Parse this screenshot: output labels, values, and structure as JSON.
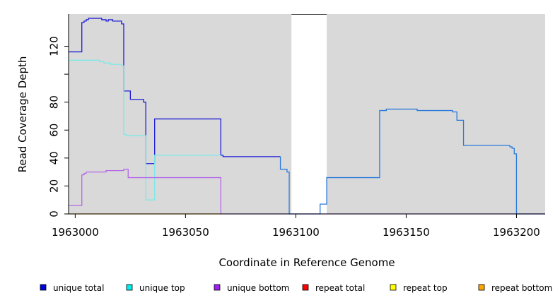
{
  "chart_data": {
    "type": "line",
    "title": "",
    "xlabel": "Coordinate in Reference Genome",
    "ylabel": "Read Coverage Depth",
    "xlim": [
      1962997,
      1963213
    ],
    "ylim": [
      0,
      143
    ],
    "x_ticks": [
      1963000,
      1963050,
      1963100,
      1963150,
      1963200
    ],
    "x_tick_labels": [
      "1963000",
      "1963050",
      "1963100",
      "1963150",
      "1963200"
    ],
    "y_ticks": [
      0,
      20,
      40,
      60,
      80,
      100,
      120
    ],
    "y_tick_labels": [
      "0",
      "20",
      "40",
      "60",
      "80",
      "",
      "120"
    ],
    "grid": false,
    "background": "#d9d9d9",
    "background_gaps": [
      [
        1963098,
        1963114
      ]
    ],
    "legend_position": "bottom",
    "legend": [
      {
        "name": "unique total",
        "color": "#0000dd"
      },
      {
        "name": "unique top",
        "color": "#00eeee"
      },
      {
        "name": "unique bottom",
        "color": "#a020f0"
      },
      {
        "name": "repeat total",
        "color": "#ff0000"
      },
      {
        "name": "repeat top",
        "color": "#ffff00"
      },
      {
        "name": "repeat bottom",
        "color": "#ffa500"
      }
    ],
    "series": [
      {
        "name": "unique total",
        "color": "#1c1cd6",
        "points": [
          [
            1962997,
            116
          ],
          [
            1963003,
            116
          ],
          [
            1963003,
            137
          ],
          [
            1963004,
            137
          ],
          [
            1963004,
            138
          ],
          [
            1963005,
            138
          ],
          [
            1963005,
            139
          ],
          [
            1963006,
            139
          ],
          [
            1963006,
            140
          ],
          [
            1963012,
            140
          ],
          [
            1963012,
            139
          ],
          [
            1963014,
            139
          ],
          [
            1963014,
            138
          ],
          [
            1963015,
            138
          ],
          [
            1963015,
            139
          ],
          [
            1963017,
            139
          ],
          [
            1963017,
            138
          ],
          [
            1963021,
            138
          ],
          [
            1963021,
            136
          ],
          [
            1963022,
            136
          ],
          [
            1963022,
            88
          ],
          [
            1963025,
            88
          ],
          [
            1963025,
            82
          ],
          [
            1963031,
            82
          ],
          [
            1963031,
            80
          ],
          [
            1963032,
            80
          ],
          [
            1963032,
            36
          ],
          [
            1963036,
            36
          ],
          [
            1963036,
            68
          ],
          [
            1963066,
            68
          ],
          [
            1963066,
            42
          ],
          [
            1963067,
            42
          ],
          [
            1963067,
            41
          ],
          [
            1963093,
            41
          ]
        ]
      },
      {
        "name": "unique top",
        "color": "#7fe8e8",
        "points": [
          [
            1962997,
            110
          ],
          [
            1963011,
            110
          ],
          [
            1963011,
            109
          ],
          [
            1963013,
            109
          ],
          [
            1963013,
            108
          ],
          [
            1963016,
            108
          ],
          [
            1963016,
            107
          ],
          [
            1963021,
            107
          ],
          [
            1963021,
            106
          ],
          [
            1963022,
            106
          ],
          [
            1963022,
            57
          ],
          [
            1963023,
            57
          ],
          [
            1963023,
            56
          ],
          [
            1963032,
            56
          ],
          [
            1963032,
            10
          ],
          [
            1963036,
            10
          ],
          [
            1963036,
            42
          ],
          [
            1963066,
            42
          ]
        ]
      },
      {
        "name": "unique bottom",
        "color": "#b469e8",
        "points": [
          [
            1962997,
            6
          ],
          [
            1963003,
            6
          ],
          [
            1963003,
            28
          ],
          [
            1963004,
            28
          ],
          [
            1963004,
            29
          ],
          [
            1963005,
            29
          ],
          [
            1963005,
            30
          ],
          [
            1963014,
            30
          ],
          [
            1963014,
            31
          ],
          [
            1963022,
            31
          ],
          [
            1963022,
            32
          ],
          [
            1963024,
            32
          ],
          [
            1963024,
            26
          ],
          [
            1963066,
            26
          ],
          [
            1963066,
            0
          ],
          [
            1963213,
            0
          ]
        ]
      },
      {
        "name": "repeat total",
        "color": "#2a7adb",
        "points": [
          [
            1963093,
            41
          ],
          [
            1963093,
            32
          ],
          [
            1963096,
            32
          ],
          [
            1963096,
            30
          ],
          [
            1963097,
            30
          ],
          [
            1963097,
            0
          ],
          [
            1963111,
            0
          ],
          [
            1963111,
            7
          ],
          [
            1963114,
            7
          ],
          [
            1963114,
            26
          ],
          [
            1963138,
            26
          ],
          [
            1963138,
            74
          ],
          [
            1963141,
            74
          ],
          [
            1963141,
            75
          ],
          [
            1963155,
            75
          ],
          [
            1963155,
            74
          ],
          [
            1963171,
            74
          ],
          [
            1963171,
            73
          ],
          [
            1963173,
            73
          ],
          [
            1963173,
            67
          ],
          [
            1963176,
            67
          ],
          [
            1963176,
            49
          ],
          [
            1963197,
            49
          ],
          [
            1963197,
            48
          ],
          [
            1963198,
            48
          ],
          [
            1963198,
            47
          ],
          [
            1963199,
            47
          ],
          [
            1963199,
            43
          ],
          [
            1963200,
            43
          ],
          [
            1963200,
            0
          ],
          [
            1963213,
            0
          ]
        ]
      },
      {
        "name": "repeat bottom",
        "color": "#ffa500",
        "points": [
          [
            1962997,
            0
          ],
          [
            1963066,
            0
          ]
        ]
      }
    ]
  }
}
